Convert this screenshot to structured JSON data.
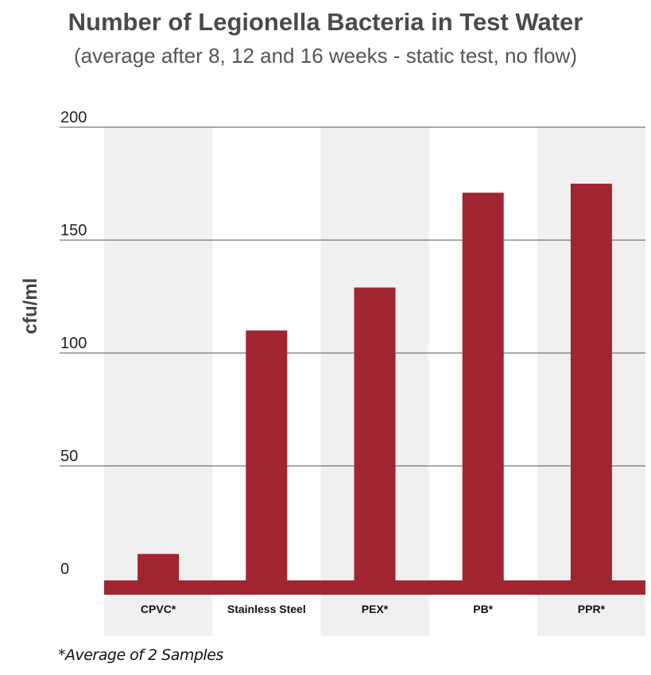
{
  "chart_data": {
    "type": "bar",
    "title": "Number of Legionella Bacteria in Test Water",
    "subtitle": "(average after 8, 12 and 16 weeks - static test, no flow)",
    "ylabel": "cfu/ml",
    "xlabel": "",
    "categories": [
      "CPVC*",
      "Stainless Steel",
      "PEX*",
      "PB*",
      "PPR*"
    ],
    "values": [
      11,
      110,
      129,
      171,
      175
    ],
    "ylim": [
      0,
      200
    ],
    "yticks": [
      0,
      50,
      100,
      150,
      200
    ],
    "grid": true,
    "footnote": "*Average of 2 Samples",
    "colors": {
      "bar": "#a02530",
      "band": "#f0f0f0",
      "grid": "#555555"
    }
  }
}
